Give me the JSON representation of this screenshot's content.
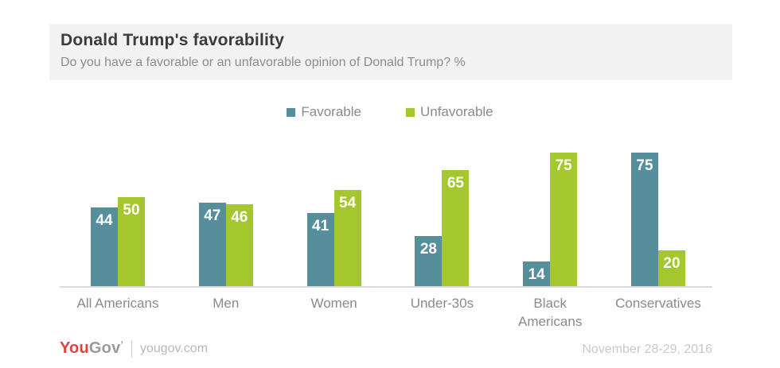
{
  "header": {
    "title": "Donald Trump's favorability",
    "subtitle": "Do you have a favorable or an unfavorable opinion of Donald Trump? %"
  },
  "chart_data": {
    "type": "bar",
    "title": "Donald Trump's favorability",
    "categories": [
      "All Americans",
      "Men",
      "Women",
      "Under-30s",
      "Black\nAmericans",
      "Conservatives"
    ],
    "series": [
      {
        "name": "Favorable",
        "color": "#578e9b",
        "values": [
          44,
          47,
          41,
          28,
          14,
          75
        ]
      },
      {
        "name": "Unfavorable",
        "color": "#a4c72e",
        "values": [
          50,
          46,
          54,
          65,
          75,
          20
        ]
      }
    ],
    "ylim": [
      0,
      100
    ],
    "unit": "%",
    "grid": false,
    "y_axis_visible": false,
    "legend_position": "top-center",
    "value_labels": "inside-top-white"
  },
  "footer": {
    "logo_you": "You",
    "logo_gov": "Gov",
    "logo_tm": "’",
    "site": "yougov.com",
    "date": "November 28-29, 2016"
  },
  "colors": {
    "favorable": "#578e9b",
    "unfavorable": "#a4c72e",
    "header_bg": "#f2f2f2",
    "axis_line": "#d9d9d9",
    "logo_red": "#e0443c",
    "text_gray": "#8a8a8a"
  }
}
